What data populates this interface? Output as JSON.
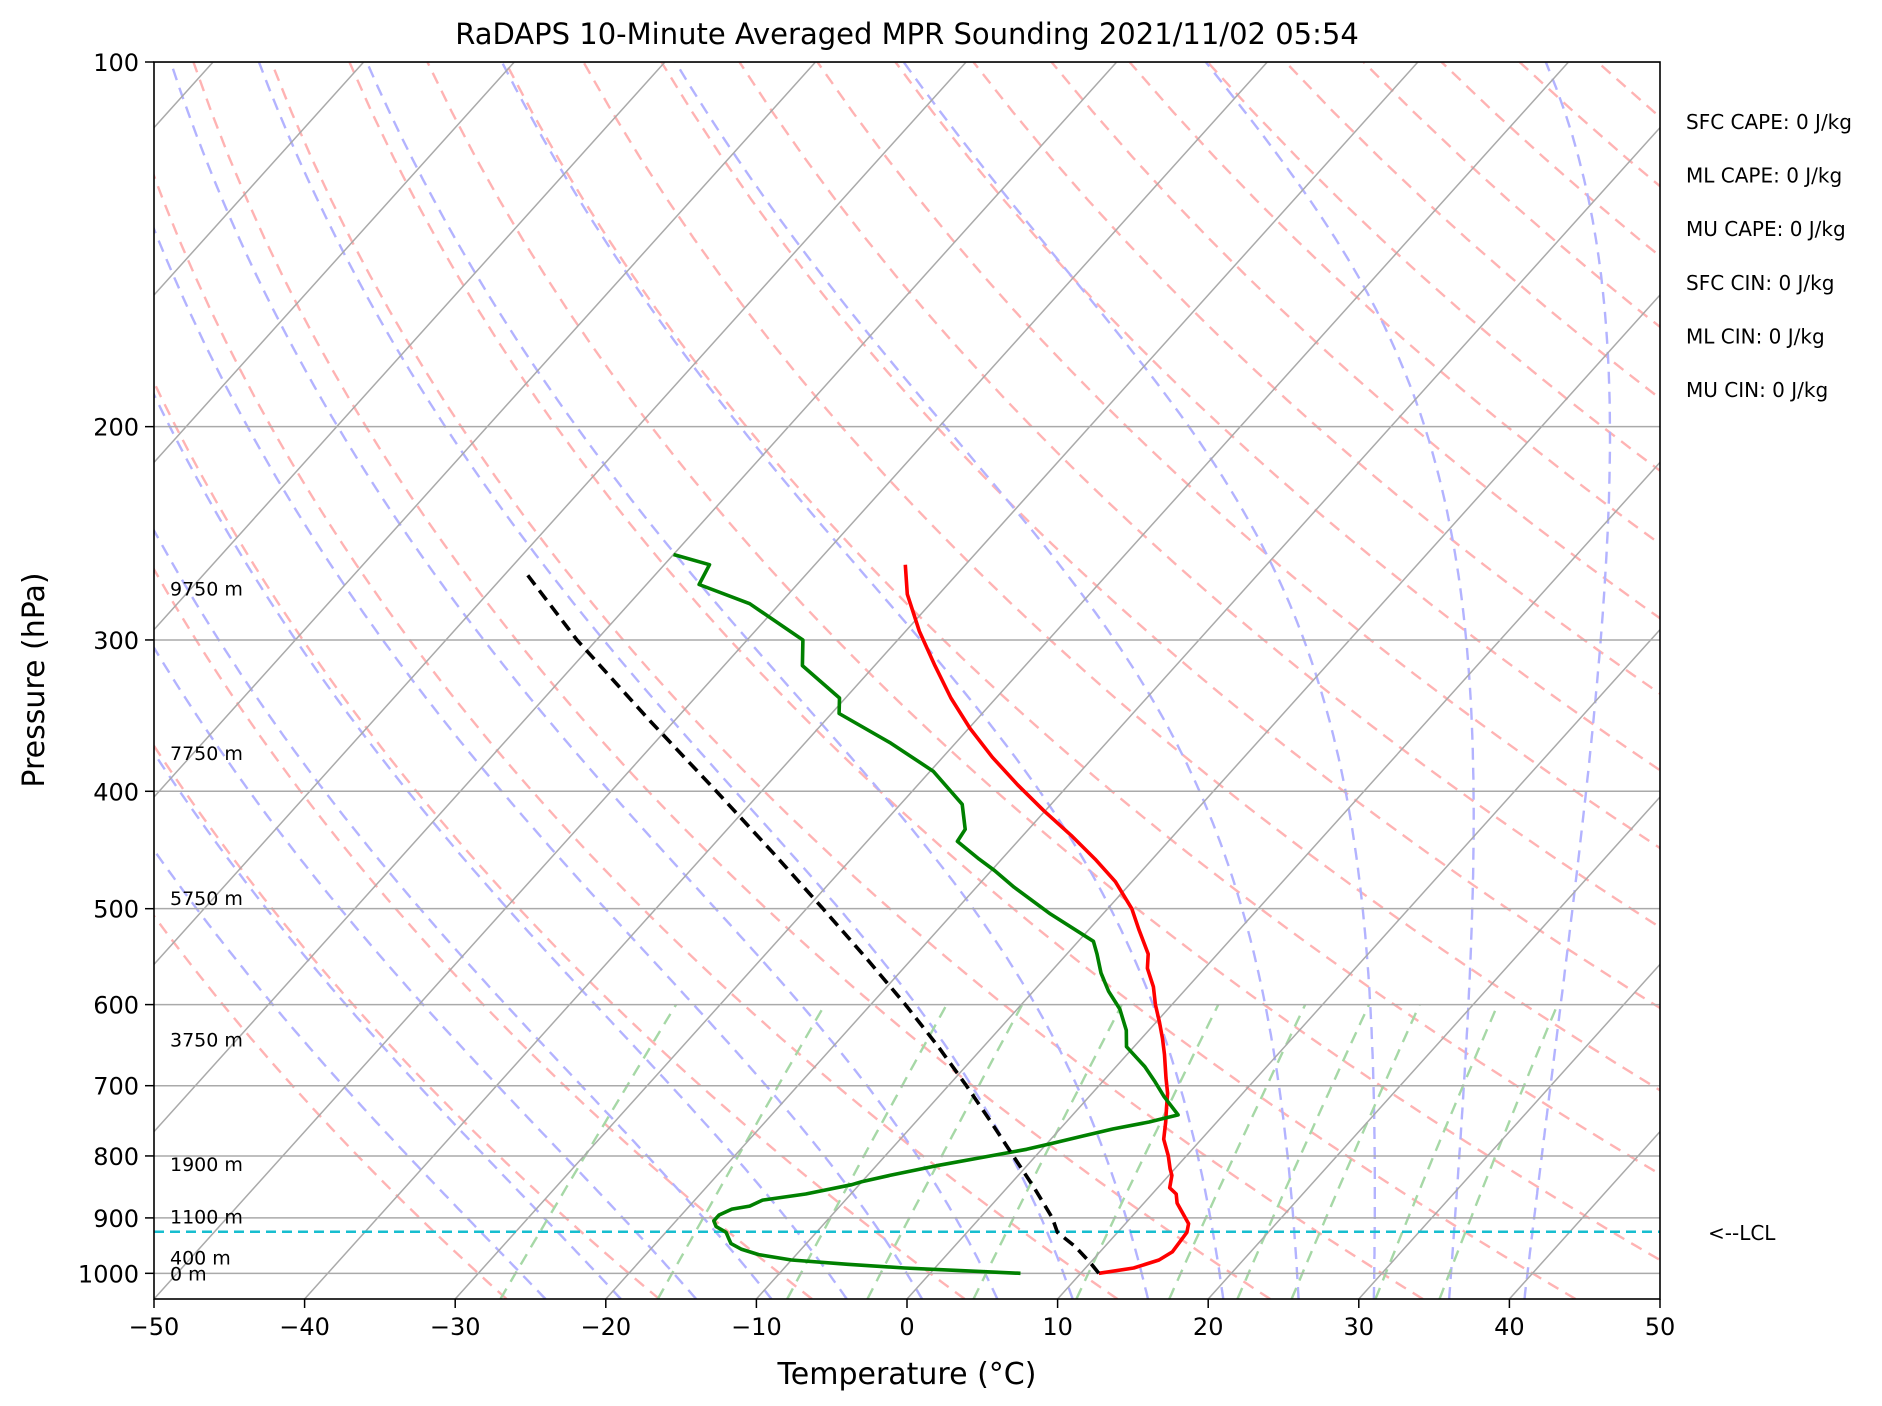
{
  "chart_data": {
    "type": "line",
    "title": "RaDAPS 10-Minute Averaged MPR Sounding 2021/11/02 05:54",
    "xlabel": "Temperature (°C)",
    "ylabel": "Pressure (hPa)",
    "xlim": [
      -50,
      50
    ],
    "ylim": [
      1050,
      100
    ],
    "y_scale": "log",
    "skew": true,
    "grid": true,
    "x_ticks": [
      -50,
      -40,
      -30,
      -20,
      -10,
      0,
      10,
      20,
      30,
      40,
      50
    ],
    "x_tick_labels": [
      "−50",
      "−40",
      "−30",
      "−20",
      "−10",
      "0",
      "10",
      "20",
      "30",
      "40",
      "50"
    ],
    "y_ticks": [
      100,
      200,
      300,
      400,
      500,
      600,
      700,
      800,
      900,
      1000
    ],
    "y_tick_labels": [
      "100",
      "200",
      "300",
      "400",
      "500",
      "600",
      "700",
      "800",
      "900",
      "1000"
    ],
    "series": [
      {
        "color": "#ff0000",
        "style": "solid",
        "points": [
          [
            11.2,
            1000
          ],
          [
            13.2,
            990
          ],
          [
            14.4,
            975
          ],
          [
            14.8,
            960
          ],
          [
            14.6,
            925
          ],
          [
            14.2,
            910
          ],
          [
            12.2,
            875
          ],
          [
            11.6,
            860
          ],
          [
            10.8,
            850
          ],
          [
            10.2,
            830
          ],
          [
            9.7,
            820
          ],
          [
            8.8,
            800
          ],
          [
            7.5,
            775
          ],
          [
            6.6,
            750
          ],
          [
            5.8,
            730
          ],
          [
            5.0,
            710
          ],
          [
            4.0,
            690
          ],
          [
            2.5,
            660
          ],
          [
            1.4,
            640
          ],
          [
            0.2,
            620
          ],
          [
            -1.1,
            600
          ],
          [
            -2.3,
            580
          ],
          [
            -3.8,
            560
          ],
          [
            -4.6,
            545
          ],
          [
            -6.7,
            520
          ],
          [
            -8.4,
            500
          ],
          [
            -11.1,
            475
          ],
          [
            -13.8,
            455
          ],
          [
            -16.8,
            435
          ],
          [
            -20.1,
            415
          ],
          [
            -23.4,
            395
          ],
          [
            -26.7,
            375
          ],
          [
            -29.9,
            355
          ],
          [
            -33.0,
            335
          ],
          [
            -36.0,
            315
          ],
          [
            -39.1,
            295
          ],
          [
            -42.1,
            275
          ],
          [
            -44.0,
            260
          ]
        ]
      },
      {
        "color": "#008000",
        "style": "solid",
        "points": [
          [
            6.0,
            1000
          ],
          [
            2.0,
            995
          ],
          [
            -2.0,
            990
          ],
          [
            -6.0,
            983
          ],
          [
            -10.0,
            975
          ],
          [
            -12.5,
            965
          ],
          [
            -14.0,
            955
          ],
          [
            -15.0,
            945
          ],
          [
            -15.5,
            935
          ],
          [
            -16.0,
            925
          ],
          [
            -17.0,
            915
          ],
          [
            -17.5,
            905
          ],
          [
            -17.5,
            895
          ],
          [
            -17.0,
            885
          ],
          [
            -16.0,
            880
          ],
          [
            -15.5,
            870
          ],
          [
            -13.0,
            860
          ],
          [
            -10.5,
            845
          ],
          [
            -10.0,
            840
          ],
          [
            -8.5,
            830
          ],
          [
            -6.0,
            815
          ],
          [
            -3.0,
            800
          ],
          [
            -1.0,
            790
          ],
          [
            0.5,
            780
          ],
          [
            2.0,
            770
          ],
          [
            3.5,
            760
          ],
          [
            5.5,
            750
          ],
          [
            7.0,
            740
          ],
          [
            5.0,
            715
          ],
          [
            3.5,
            695
          ],
          [
            1.9,
            675
          ],
          [
            -0.5,
            650
          ],
          [
            -1.5,
            630
          ],
          [
            -3.2,
            605
          ],
          [
            -5.0,
            585
          ],
          [
            -6.6,
            565
          ],
          [
            -8.0,
            545
          ],
          [
            -9.0,
            532
          ],
          [
            -13.5,
            505
          ],
          [
            -17.5,
            480
          ],
          [
            -19.8,
            465
          ],
          [
            -21.5,
            455
          ],
          [
            -24.0,
            440
          ],
          [
            -24.2,
            430
          ],
          [
            -25.9,
            410
          ],
          [
            -29.8,
            385
          ],
          [
            -34.3,
            365
          ],
          [
            -39.5,
            345
          ],
          [
            -40.4,
            335
          ],
          [
            -44.8,
            315
          ],
          [
            -46.3,
            300
          ],
          [
            -52.0,
            280
          ],
          [
            -56.5,
            270
          ],
          [
            -57.0,
            260
          ],
          [
            -60.0,
            255
          ]
        ]
      },
      {
        "color": "#000000",
        "style": "dashed",
        "points": [
          [
            11.2,
            1000
          ],
          [
            10.0,
            980
          ],
          [
            8.0,
            950
          ],
          [
            6.0,
            925
          ],
          [
            4.8,
            900
          ],
          [
            1.8,
            850
          ],
          [
            -1.5,
            800
          ],
          [
            -5.0,
            750
          ],
          [
            -8.8,
            700
          ],
          [
            -13.0,
            650
          ],
          [
            -17.7,
            600
          ],
          [
            -23.0,
            550
          ],
          [
            -28.9,
            500
          ],
          [
            -35.5,
            450
          ],
          [
            -43.0,
            400
          ],
          [
            -51.6,
            350
          ],
          [
            -61.3,
            300
          ],
          [
            -68.5,
            265
          ]
        ]
      }
    ],
    "lcl_pressure": 924,
    "lcl_label": "<--LCL",
    "height_labels": [
      {
        "text": "9750 m",
        "p": 272
      },
      {
        "text": "7750 m",
        "p": 372
      },
      {
        "text": "5750 m",
        "p": 490
      },
      {
        "text": "3750 m",
        "p": 641
      },
      {
        "text": "1900 m",
        "p": 812
      },
      {
        "text": "1100 m",
        "p": 898
      },
      {
        "text": "400 m",
        "p": 970
      },
      {
        "text": "0 m",
        "p": 1000
      }
    ],
    "indices": [
      "SFC CAPE: 0 J/kg",
      "ML CAPE: 0 J/kg",
      "MU CAPE: 0 J/kg",
      "SFC CIN: 0 J/kg",
      "ML CIN: 0 J/kg",
      "MU CIN: 0 J/kg"
    ],
    "colors": {
      "temperature": "#ff0000",
      "dewpoint": "#008000",
      "parcel": "#000000",
      "lcl": "#17becf",
      "isotherms": "#aaaaaa",
      "dry_adiabats": "#ffb3b3",
      "moist_adiabats": "#b3b3ff",
      "mixing_ratio": "#a6d8a6",
      "isobars": "#aaaaaa"
    }
  }
}
